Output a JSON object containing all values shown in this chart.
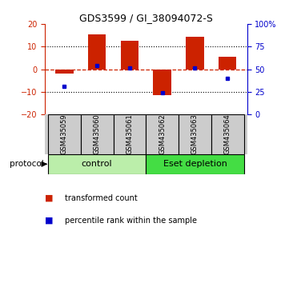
{
  "title": "GDS3599 / GI_38094072-S",
  "samples": [
    "GSM435059",
    "GSM435060",
    "GSM435061",
    "GSM435062",
    "GSM435063",
    "GSM435064"
  ],
  "bar_values": [
    -2.0,
    15.5,
    12.5,
    -11.5,
    14.5,
    5.5
  ],
  "dot_values": [
    -7.5,
    1.5,
    0.5,
    -10.5,
    0.5,
    -4.0
  ],
  "ylim": [
    -20,
    20
  ],
  "yticks_left": [
    -20,
    -10,
    0,
    10,
    20
  ],
  "yticks_right": [
    0,
    25,
    50,
    75,
    100
  ],
  "bar_color": "#cc2200",
  "dot_color": "#0000cc",
  "dashed_color": "#cc2200",
  "groups": [
    {
      "label": "control",
      "indices": [
        0,
        1,
        2
      ],
      "color": "#aaeea a"
    },
    {
      "label": "Eset depletion",
      "indices": [
        3,
        4,
        5
      ],
      "color": "#44dd44"
    }
  ],
  "protocol_label": "protocol",
  "legend_bar_label": "transformed count",
  "legend_dot_label": "percentile rank within the sample",
  "bar_width": 0.55,
  "bg_color": "#ffffff",
  "sample_box_color": "#cccccc",
  "title_fontsize": 9,
  "tick_fontsize": 7,
  "label_fontsize": 7
}
